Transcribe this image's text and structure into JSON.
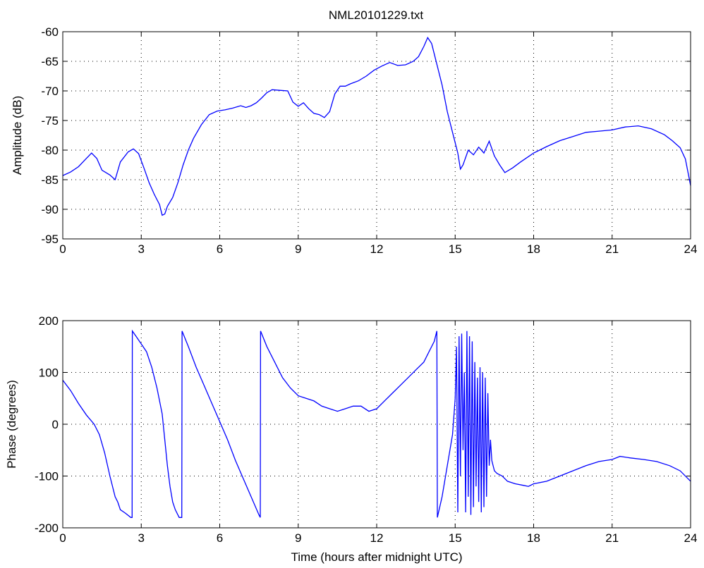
{
  "figure_title": "NML20101229.txt",
  "chart_data": [
    {
      "type": "line",
      "title": "NML20101229.txt",
      "xlabel": "",
      "ylabel": "Amplitude (dB)",
      "xlim": [
        0,
        24
      ],
      "ylim": [
        -95,
        -60
      ],
      "xticks": [
        "0",
        "3",
        "6",
        "9",
        "12",
        "15",
        "18",
        "21",
        "24"
      ],
      "yticks": [
        "-60",
        "-65",
        "-70",
        "-75",
        "-80",
        "-85",
        "-90",
        "-95"
      ],
      "grid": true,
      "color": "#0000ff",
      "series": [
        {
          "x": [
            0,
            0.3,
            0.6,
            0.9,
            1.1,
            1.3,
            1.5,
            1.8,
            2.0,
            2.2,
            2.5,
            2.7,
            2.9,
            3.1,
            3.3,
            3.5,
            3.7,
            3.8,
            3.9,
            4.0,
            4.2,
            4.4,
            4.6,
            4.8,
            5.0,
            5.3,
            5.6,
            5.9,
            6.2,
            6.5,
            6.8,
            7.0,
            7.2,
            7.4,
            7.6,
            7.8,
            8.0,
            8.3,
            8.6,
            8.8,
            9.0,
            9.2,
            9.4,
            9.6,
            9.8,
            10.0,
            10.2,
            10.4,
            10.6,
            10.8,
            11.0,
            11.3,
            11.6,
            11.9,
            12.2,
            12.5,
            12.8,
            13.1,
            13.4,
            13.6,
            13.8,
            13.95,
            14.1,
            14.3,
            14.5,
            14.7,
            14.9,
            15.1,
            15.2,
            15.3,
            15.5,
            15.7,
            15.9,
            16.1,
            16.3,
            16.5,
            16.7,
            16.9,
            17.2,
            17.5,
            18.0,
            18.5,
            19.0,
            19.5,
            20.0,
            20.5,
            21.0,
            21.5,
            22.0,
            22.5,
            23.0,
            23.3,
            23.6,
            23.8,
            24.0
          ],
          "y": [
            -84.3,
            -83.7,
            -82.8,
            -81.4,
            -80.5,
            -81.4,
            -83.4,
            -84.2,
            -85.0,
            -82.0,
            -80.3,
            -79.8,
            -80.6,
            -83.0,
            -85.5,
            -87.5,
            -89.2,
            -91.0,
            -90.8,
            -89.5,
            -88.0,
            -85.5,
            -82.5,
            -80.0,
            -78.0,
            -75.7,
            -74.0,
            -73.4,
            -73.2,
            -72.9,
            -72.5,
            -72.8,
            -72.5,
            -72.0,
            -71.2,
            -70.3,
            -69.8,
            -69.9,
            -70.0,
            -71.9,
            -72.6,
            -72.0,
            -73.0,
            -73.8,
            -74.0,
            -74.5,
            -73.5,
            -70.5,
            -69.2,
            -69.2,
            -68.8,
            -68.3,
            -67.5,
            -66.5,
            -65.8,
            -65.2,
            -65.7,
            -65.6,
            -65.0,
            -64.2,
            -62.5,
            -61.0,
            -62.0,
            -65.5,
            -69.0,
            -73.5,
            -77.0,
            -80.5,
            -83.2,
            -82.5,
            -80.0,
            -80.8,
            -79.5,
            -80.5,
            -78.5,
            -81.0,
            -82.5,
            -83.8,
            -83.0,
            -82.0,
            -80.5,
            -79.4,
            -78.4,
            -77.7,
            -77.0,
            -76.8,
            -76.6,
            -76.1,
            -75.9,
            -76.4,
            -77.4,
            -78.4,
            -79.6,
            -81.5,
            -86.0
          ]
        }
      ]
    },
    {
      "type": "line",
      "title": "",
      "xlabel": "Time (hours after midnight UTC)",
      "ylabel": "Phase (degrees)",
      "xlim": [
        0,
        24
      ],
      "ylim": [
        -200,
        200
      ],
      "xticks": [
        "0",
        "3",
        "6",
        "9",
        "12",
        "15",
        "18",
        "21",
        "24"
      ],
      "yticks": [
        "200",
        "100",
        "0",
        "-100",
        "-200"
      ],
      "grid": true,
      "color": "#0000ff",
      "series": [
        {
          "x": [
            0,
            0.3,
            0.6,
            0.9,
            1.2,
            1.4,
            1.6,
            1.8,
            2.0,
            2.1,
            2.2,
            2.4,
            2.6,
            2.65,
            2.66,
            2.8,
            3.0,
            3.2,
            3.4,
            3.6,
            3.8,
            3.9,
            4.0,
            4.1,
            4.2,
            4.3,
            4.45,
            4.55,
            4.56,
            4.8,
            5.1,
            5.4,
            5.7,
            6.0,
            6.3,
            6.6,
            6.9,
            7.2,
            7.5,
            7.55,
            7.56,
            7.8,
            8.1,
            8.4,
            8.7,
            9.0,
            9.3,
            9.6,
            9.9,
            10.2,
            10.5,
            10.8,
            11.1,
            11.4,
            11.7,
            12.0,
            12.3,
            12.6,
            12.9,
            13.2,
            13.5,
            13.8,
            14.0,
            14.2,
            14.3,
            14.32,
            14.5,
            14.7,
            14.9,
            15.0,
            15.05,
            15.1,
            15.15,
            15.2,
            15.25,
            15.3,
            15.35,
            15.4,
            15.45,
            15.5,
            15.55,
            15.6,
            15.65,
            15.7,
            15.75,
            15.8,
            15.85,
            15.9,
            15.95,
            16.0,
            16.05,
            16.1,
            16.15,
            16.2,
            16.25,
            16.3,
            16.35,
            16.4,
            16.5,
            16.6,
            16.8,
            17.0,
            17.3,
            17.6,
            17.8,
            18.0,
            18.5,
            19.0,
            19.5,
            20.0,
            20.5,
            21.0,
            21.3,
            21.7,
            22.2,
            22.7,
            23.2,
            23.6,
            24.0
          ],
          "y": [
            85,
            65,
            40,
            18,
            0,
            -20,
            -55,
            -100,
            -140,
            -150,
            -165,
            -172,
            -180,
            -180,
            180,
            170,
            155,
            140,
            110,
            70,
            20,
            -30,
            -80,
            -120,
            -150,
            -165,
            -180,
            -180,
            180,
            150,
            110,
            75,
            40,
            5,
            -30,
            -70,
            -105,
            -140,
            -175,
            -180,
            180,
            150,
            120,
            90,
            70,
            55,
            50,
            45,
            35,
            30,
            25,
            30,
            35,
            35,
            25,
            30,
            45,
            60,
            75,
            90,
            105,
            120,
            140,
            160,
            180,
            -180,
            -140,
            -80,
            -20,
            50,
            150,
            -170,
            170,
            -100,
            175,
            -50,
            100,
            -170,
            180,
            -140,
            170,
            -175,
            160,
            -160,
            120,
            -120,
            90,
            -150,
            110,
            -170,
            100,
            -160,
            90,
            -140,
            60,
            -80,
            -30,
            -70,
            -90,
            -95,
            -100,
            -110,
            -115,
            -118,
            -120,
            -115,
            -110,
            -100,
            -90,
            -80,
            -72,
            -68,
            -62,
            -65,
            -68,
            -72,
            -80,
            -90,
            -110
          ]
        }
      ]
    }
  ]
}
